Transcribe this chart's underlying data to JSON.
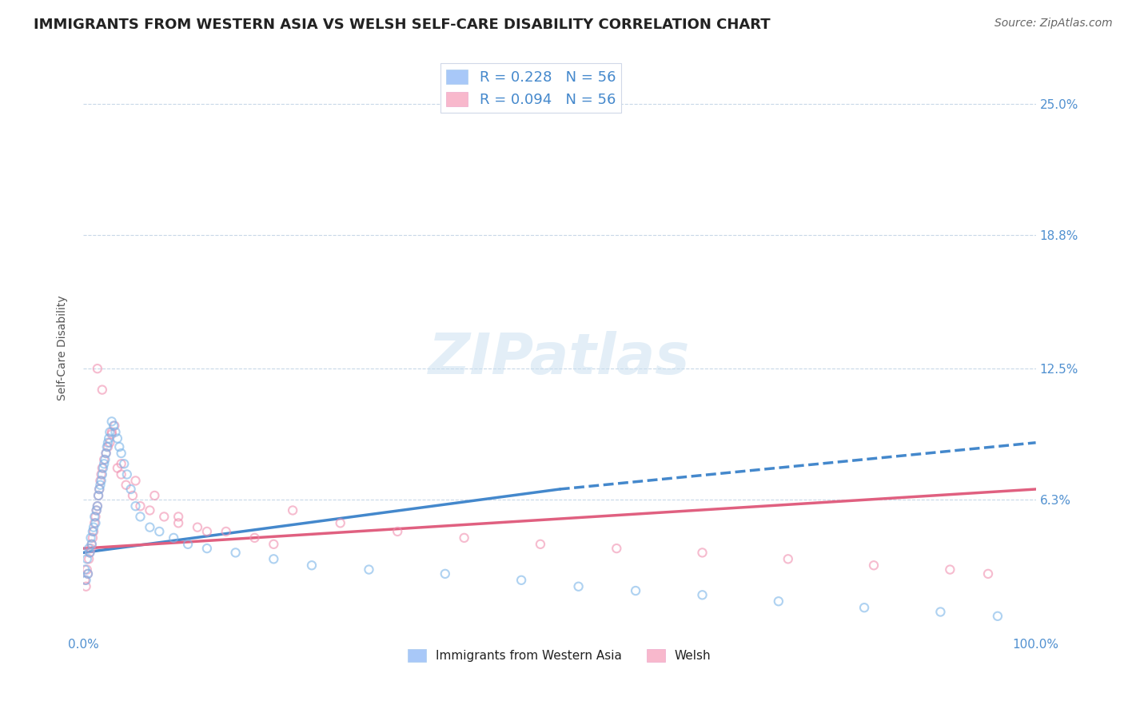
{
  "title": "IMMIGRANTS FROM WESTERN ASIA VS WELSH SELF-CARE DISABILITY CORRELATION CHART",
  "source": "Source: ZipAtlas.com",
  "xlabel": "",
  "ylabel": "Self-Care Disability",
  "watermark": "ZIPatlas",
  "legend_series": [
    {
      "label": "Immigrants from Western Asia",
      "R": "0.228",
      "N": "56",
      "color": "#a8c8f0",
      "dot_color": "#7ab4e8"
    },
    {
      "label": "Welsh",
      "R": "0.094",
      "N": "56",
      "color": "#f8b8cc",
      "dot_color": "#f090b0"
    }
  ],
  "ytick_labels": [
    "6.3%",
    "12.5%",
    "18.8%",
    "25.0%"
  ],
  "ytick_values": [
    0.063,
    0.125,
    0.188,
    0.25
  ],
  "xtick_labels": [
    "0.0%",
    "100.0%"
  ],
  "xlim": [
    0.0,
    1.0
  ],
  "ylim": [
    0.0,
    0.27
  ],
  "blue_scatter_x": [
    0.002,
    0.003,
    0.004,
    0.005,
    0.006,
    0.007,
    0.008,
    0.009,
    0.01,
    0.011,
    0.012,
    0.013,
    0.014,
    0.015,
    0.016,
    0.017,
    0.018,
    0.019,
    0.02,
    0.021,
    0.022,
    0.023,
    0.024,
    0.025,
    0.026,
    0.027,
    0.028,
    0.03,
    0.032,
    0.034,
    0.036,
    0.038,
    0.04,
    0.043,
    0.046,
    0.05,
    0.055,
    0.06,
    0.07,
    0.08,
    0.095,
    0.11,
    0.13,
    0.16,
    0.2,
    0.24,
    0.3,
    0.38,
    0.46,
    0.52,
    0.58,
    0.65,
    0.73,
    0.82,
    0.9,
    0.96
  ],
  "blue_scatter_y": [
    0.03,
    0.025,
    0.035,
    0.028,
    0.04,
    0.038,
    0.045,
    0.042,
    0.048,
    0.05,
    0.055,
    0.052,
    0.058,
    0.06,
    0.065,
    0.068,
    0.07,
    0.072,
    0.075,
    0.078,
    0.08,
    0.082,
    0.085,
    0.088,
    0.09,
    0.092,
    0.095,
    0.1,
    0.098,
    0.095,
    0.092,
    0.088,
    0.085,
    0.08,
    0.075,
    0.068,
    0.06,
    0.055,
    0.05,
    0.048,
    0.045,
    0.042,
    0.04,
    0.038,
    0.035,
    0.032,
    0.03,
    0.028,
    0.025,
    0.022,
    0.02,
    0.018,
    0.015,
    0.012,
    0.01,
    0.008
  ],
  "pink_scatter_x": [
    0.002,
    0.003,
    0.004,
    0.005,
    0.006,
    0.007,
    0.008,
    0.009,
    0.01,
    0.011,
    0.012,
    0.013,
    0.014,
    0.015,
    0.016,
    0.017,
    0.018,
    0.019,
    0.02,
    0.022,
    0.024,
    0.026,
    0.028,
    0.03,
    0.033,
    0.036,
    0.04,
    0.045,
    0.052,
    0.06,
    0.07,
    0.085,
    0.1,
    0.12,
    0.15,
    0.18,
    0.22,
    0.27,
    0.33,
    0.4,
    0.48,
    0.56,
    0.65,
    0.74,
    0.83,
    0.91,
    0.95,
    0.015,
    0.02,
    0.03,
    0.04,
    0.055,
    0.075,
    0.1,
    0.13,
    0.2
  ],
  "pink_scatter_y": [
    0.025,
    0.022,
    0.03,
    0.028,
    0.035,
    0.038,
    0.04,
    0.042,
    0.045,
    0.048,
    0.052,
    0.055,
    0.058,
    0.06,
    0.065,
    0.068,
    0.072,
    0.075,
    0.078,
    0.082,
    0.085,
    0.088,
    0.09,
    0.094,
    0.098,
    0.078,
    0.075,
    0.07,
    0.065,
    0.06,
    0.058,
    0.055,
    0.052,
    0.05,
    0.048,
    0.045,
    0.058,
    0.052,
    0.048,
    0.045,
    0.042,
    0.04,
    0.038,
    0.035,
    0.032,
    0.03,
    0.028,
    0.125,
    0.115,
    0.095,
    0.08,
    0.072,
    0.065,
    0.055,
    0.048,
    0.042
  ],
  "blue_solid_line_x": [
    0.0,
    0.5
  ],
  "blue_solid_line_y": [
    0.038,
    0.068
  ],
  "blue_dashed_line_x": [
    0.5,
    1.0
  ],
  "blue_dashed_line_y": [
    0.068,
    0.09
  ],
  "pink_line_x": [
    0.0,
    1.0
  ],
  "pink_line_y": [
    0.04,
    0.068
  ],
  "title_fontsize": 13,
  "axis_label_fontsize": 10,
  "tick_fontsize": 11,
  "source_fontsize": 10,
  "watermark_fontsize": 52,
  "background_color": "#ffffff",
  "grid_color": "#c8d8e8",
  "scatter_alpha": 0.6,
  "scatter_size": 55,
  "blue_scatter_color": "#7ab4e8",
  "pink_scatter_color": "#f090b0",
  "blue_line_color": "#4488cc",
  "pink_line_color": "#e06080",
  "blue_legend_color": "#a8c8f8",
  "pink_legend_color": "#f8b8cc",
  "legend_text_color": "#4488cc",
  "tick_label_color": "#5090d0",
  "title_color": "#222222",
  "ylabel_color": "#555555",
  "source_color": "#666666"
}
